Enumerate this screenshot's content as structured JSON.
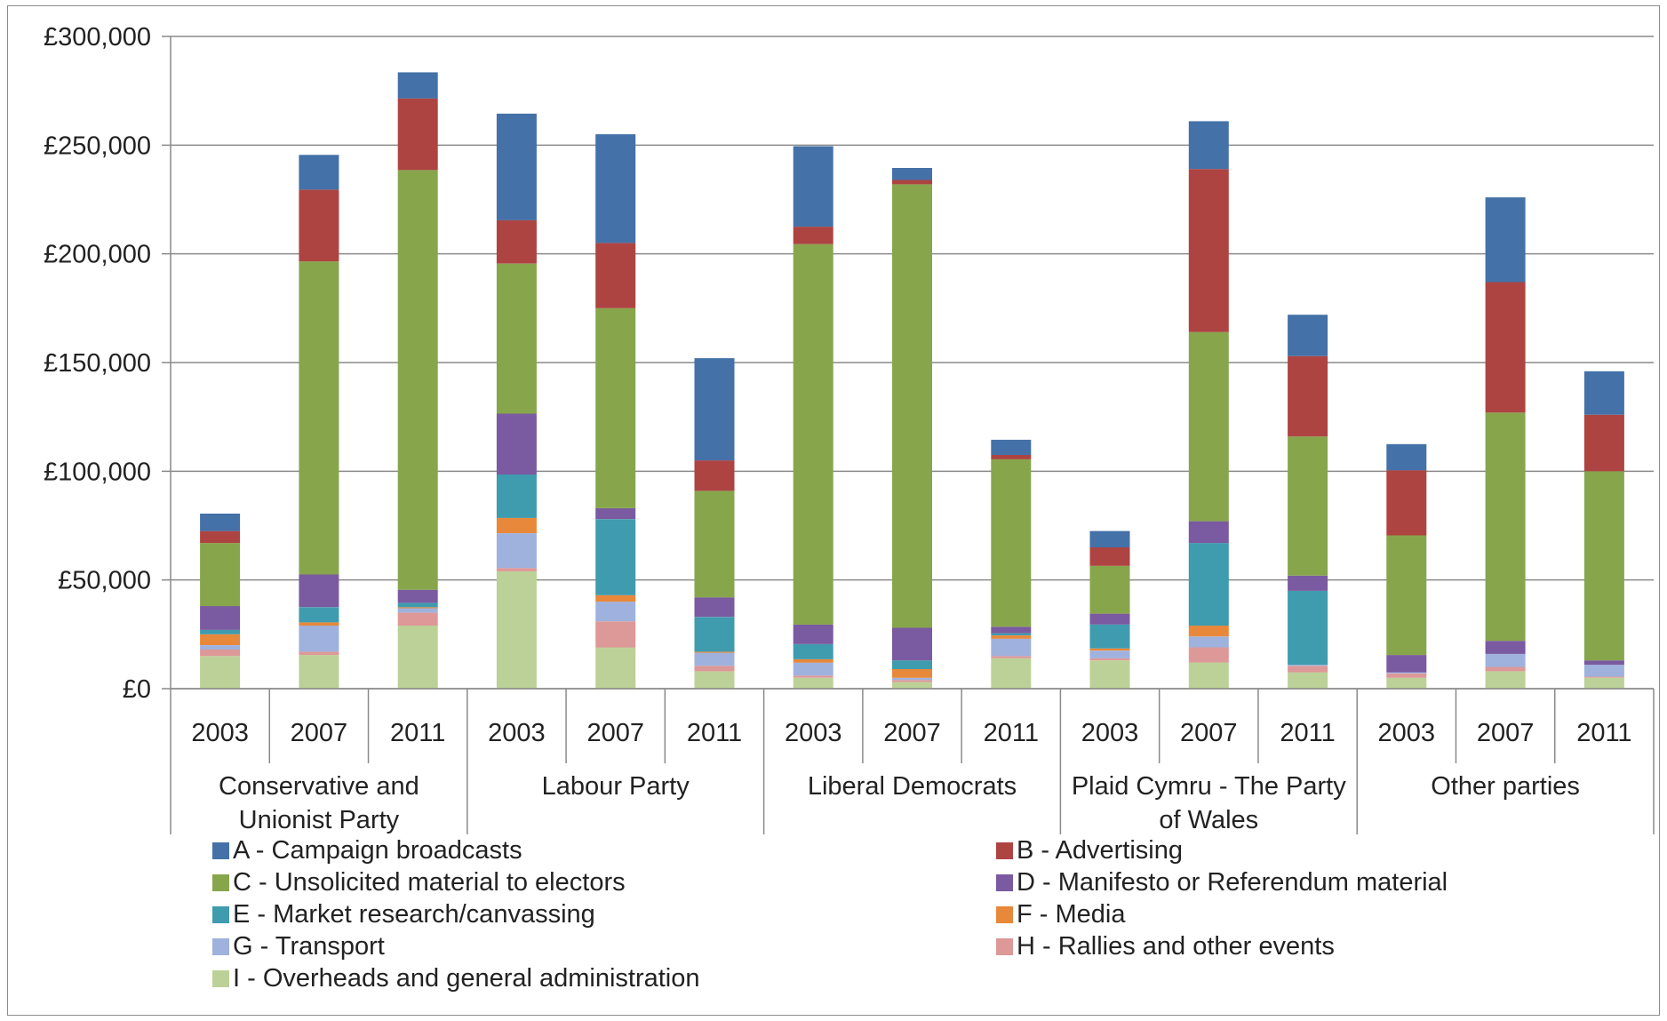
{
  "chart_data": {
    "type": "bar",
    "stacked": true,
    "yaxis": {
      "min": 0,
      "max": 300000,
      "step": 50000,
      "tick_labels": [
        "£0",
        "£50,000",
        "£100,000",
        "£150,000",
        "£200,000",
        "£250,000",
        "£300,000"
      ]
    },
    "grid": true,
    "legend_position": "bottom",
    "groups": [
      {
        "label": "Conservative and Unionist Party",
        "label_lines": [
          "Conservative and",
          "Unionist Party"
        ],
        "years": [
          "2003",
          "2007",
          "2011"
        ]
      },
      {
        "label": "Labour Party",
        "label_lines": [
          "Labour Party"
        ],
        "years": [
          "2003",
          "2007",
          "2011"
        ]
      },
      {
        "label": "Liberal Democrats",
        "label_lines": [
          "Liberal Democrats"
        ],
        "years": [
          "2003",
          "2007",
          "2011"
        ]
      },
      {
        "label": "Plaid Cymru - The Party of Wales",
        "label_lines": [
          "Plaid Cymru - The Party",
          "of Wales"
        ],
        "years": [
          "2003",
          "2007",
          "2011"
        ]
      },
      {
        "label": "Other parties",
        "label_lines": [
          "Other parties"
        ],
        "years": [
          "2003",
          "2007",
          "2011"
        ]
      }
    ],
    "series": [
      {
        "name": "I - Overheads and general administration",
        "color": "#bcd197",
        "values": [
          15000,
          15500,
          29000,
          54000,
          19000,
          8000,
          5000,
          3000,
          14000,
          13000,
          12000,
          7500,
          5000,
          8000,
          5000
        ]
      },
      {
        "name": "H - Rallies and other events",
        "color": "#dd9898",
        "values": [
          3000,
          1500,
          6000,
          1500,
          12000,
          2500,
          1000,
          1000,
          1000,
          1000,
          7000,
          3000,
          2000,
          2000,
          500
        ]
      },
      {
        "name": "G - Transport",
        "color": "#9fb2dd",
        "values": [
          2000,
          12000,
          2000,
          16000,
          9000,
          6000,
          6000,
          1000,
          8000,
          3500,
          5000,
          500,
          500,
          6000,
          5500
        ]
      },
      {
        "name": "F - Media",
        "color": "#e8883a",
        "values": [
          5000,
          1500,
          500,
          7000,
          3000,
          500,
          1500,
          4000,
          1500,
          1000,
          5000,
          0,
          0,
          0,
          0
        ]
      },
      {
        "name": "E - Market research/canvassing",
        "color": "#3f9bae",
        "values": [
          2000,
          7000,
          2000,
          20000,
          35000,
          16000,
          7000,
          4000,
          1000,
          11000,
          38000,
          34000,
          0,
          0,
          0
        ]
      },
      {
        "name": "D - Manifesto or Referendum material",
        "color": "#7a5aa0",
        "values": [
          11000,
          15000,
          6000,
          28000,
          5000,
          9000,
          9000,
          15000,
          3000,
          5000,
          10000,
          7000,
          8000,
          6000,
          2000
        ]
      },
      {
        "name": "C - Unsolicited material to electors",
        "color": "#87a64b",
        "values": [
          29000,
          144000,
          193000,
          69000,
          92000,
          49000,
          175000,
          204000,
          77000,
          22000,
          87000,
          64000,
          55000,
          105000,
          87000
        ]
      },
      {
        "name": "B - Advertising",
        "color": "#ad4442",
        "values": [
          5500,
          33000,
          33000,
          20000,
          30000,
          14000,
          8000,
          2000,
          2000,
          8500,
          75000,
          37000,
          30000,
          60000,
          26000
        ]
      },
      {
        "name": "A - Campaign broadcasts",
        "color": "#4471a8",
        "values": [
          8000,
          16000,
          12000,
          49000,
          50000,
          47000,
          37000,
          5500,
          7000,
          7500,
          22000,
          19000,
          12000,
          39000,
          20000
        ]
      }
    ],
    "legend_order": [
      "A - Campaign broadcasts",
      "B - Advertising",
      "C - Unsolicited material to electors",
      "D - Manifesto or Referendum material",
      "E - Market research/canvassing",
      "F - Media",
      "G - Transport",
      "H - Rallies and other events",
      "I - Overheads and general administration"
    ]
  }
}
